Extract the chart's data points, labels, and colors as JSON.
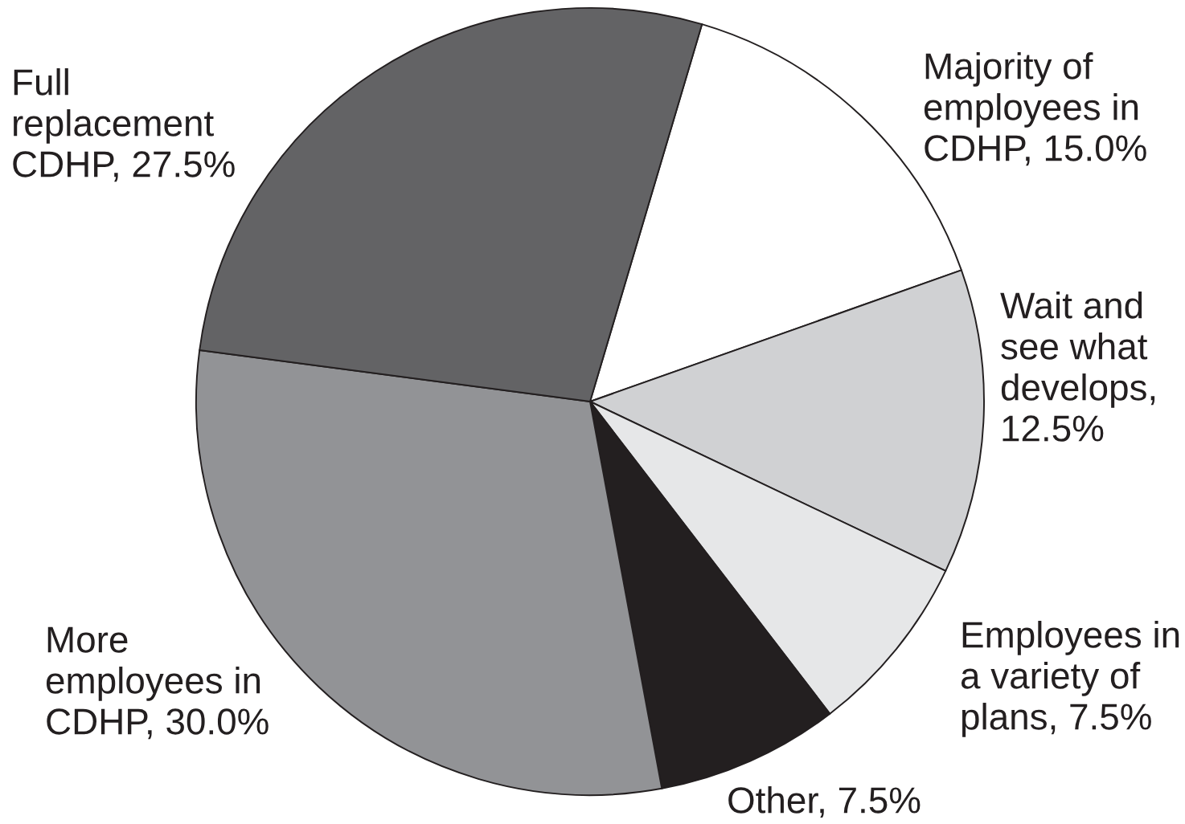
{
  "chart_data": {
    "type": "pie",
    "categories": [
      "Majority of employees in CDHP, 15.0%",
      "Wait and see what develops, 12.5%",
      "Employees in a variety of plans, 7.5%",
      "Other, 7.5%",
      "More employees in CDHP, 30.0%",
      "Full replacement CDHP, 27.5%"
    ],
    "values": [
      15.0,
      12.5,
      7.5,
      7.5,
      30.0,
      27.5
    ],
    "colors": [
      "#ffffff",
      "#d0d1d3",
      "#e6e7e8",
      "#231f20",
      "#929396",
      "#636365"
    ]
  }
}
